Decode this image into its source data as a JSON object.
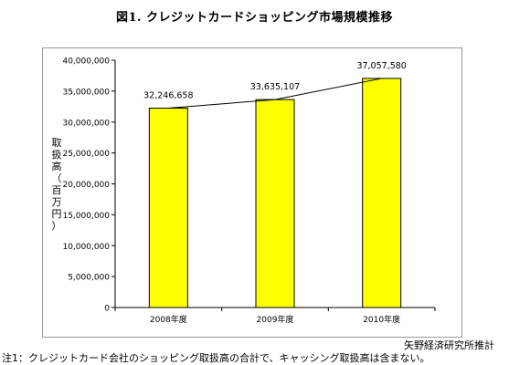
{
  "title": "図1. クレジットカードショッピング市場規模推移",
  "source": "矢野経済研究所推計",
  "note": "注1：クレジットカード会社のショッピング取扱高の合計で、キャッシング取扱高は含まない。",
  "colors": {
    "bar": "#ffff00",
    "bar_stroke": "#000000",
    "line": "#000000"
  },
  "chart_data": {
    "type": "bar",
    "categories": [
      "2008年度",
      "2009年度",
      "2010年度"
    ],
    "values": [
      32246658,
      33635107,
      37057580
    ],
    "value_labels": [
      "32,246,658",
      "33,635,107",
      "37,057,580"
    ],
    "ylabel": "取扱高（百万円）",
    "ylim": [
      0,
      40000000
    ],
    "yticks": [
      0,
      5000000,
      10000000,
      15000000,
      20000000,
      25000000,
      30000000,
      35000000,
      40000000
    ],
    "ytick_labels": [
      "0",
      "5,000,000",
      "10,000,000",
      "15,000,000",
      "20,000,000",
      "25,000,000",
      "30,000,000",
      "35,000,000",
      "40,000,000"
    ],
    "trend_line": true,
    "grid": false
  }
}
